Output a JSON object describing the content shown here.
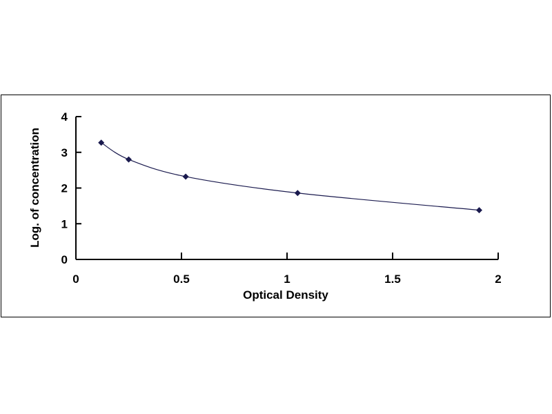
{
  "chart_data": {
    "type": "scatter",
    "title": "",
    "xlabel": "Optical Density",
    "ylabel": "Log. of concentration",
    "xlim": [
      0,
      2
    ],
    "ylim": [
      0,
      4
    ],
    "xticks": [
      "0",
      "0.5",
      "1",
      "1.5",
      "2"
    ],
    "yticks": [
      "0",
      "1",
      "2",
      "3",
      "4"
    ],
    "grid": false,
    "series": [
      {
        "x": [
          0.12,
          0.25,
          0.52,
          1.05,
          1.91
        ],
        "y": [
          3.27,
          2.8,
          2.32,
          1.86,
          1.38
        ],
        "marker": "diamond",
        "color": "#1a1a4e",
        "fit_line": "smooth curve"
      }
    ]
  }
}
